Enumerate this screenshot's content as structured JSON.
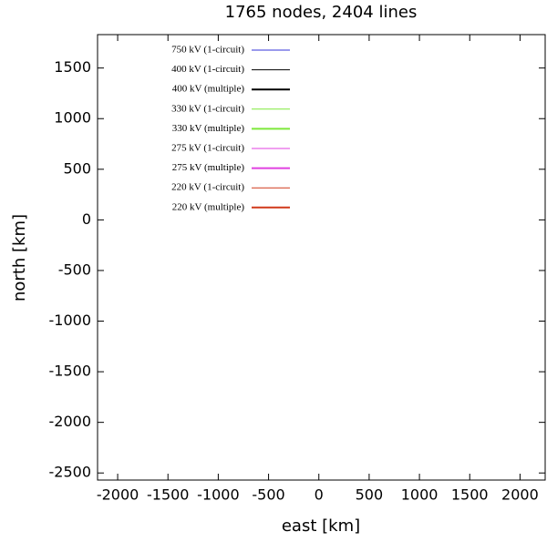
{
  "chart_data": {
    "type": "line",
    "title": "1765 nodes, 2404 lines",
    "xlabel": "east [km]",
    "ylabel": "north [km]",
    "xlim": [
      -2200,
      2250
    ],
    "ylim": [
      -2570,
      1830
    ],
    "xticks": [
      -2000,
      -1500,
      -1000,
      -500,
      0,
      500,
      1000,
      1500,
      2000
    ],
    "yticks": [
      -2500,
      -2000,
      -1500,
      -1000,
      -500,
      0,
      500,
      1000,
      1500
    ],
    "legend": "upper-left",
    "series": [
      {
        "name": "750 kV (1-circuit)",
        "color": "#3434d8",
        "line_width": 1
      },
      {
        "name": "400 kV (1-circuit)",
        "color": "#000000",
        "line_width": 1
      },
      {
        "name": "400 kV (multiple)",
        "color": "#000000",
        "line_width": 2
      },
      {
        "name": "330 kV (1-circuit)",
        "color": "#7ee83a",
        "line_width": 1
      },
      {
        "name": "330 kV (multiple)",
        "color": "#7ee83a",
        "line_width": 2
      },
      {
        "name": "275 kV (1-circuit)",
        "color": "#e040e0",
        "line_width": 1
      },
      {
        "name": "275 kV (multiple)",
        "color": "#e040e0",
        "line_width": 2
      },
      {
        "name": "220 kV (1-circuit)",
        "color": "#d0391a",
        "line_width": 1
      },
      {
        "name": "220 kV (multiple)",
        "color": "#d0391a",
        "line_width": 2
      }
    ]
  }
}
